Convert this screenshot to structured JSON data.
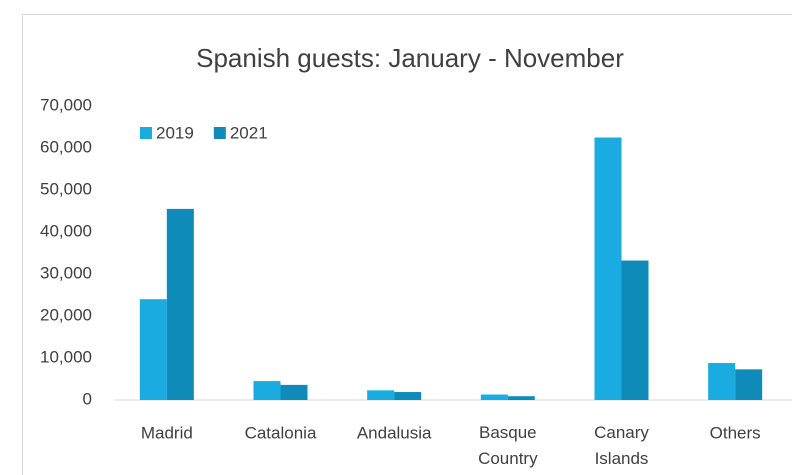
{
  "chart_data": {
    "type": "bar",
    "title": "Spanish guests: January - November",
    "categories": [
      "Madrid",
      "Catalonia",
      "Andalusia",
      "Basque Country",
      "Canary Islands",
      "Others"
    ],
    "series": [
      {
        "name": "2019",
        "color": "#1aabe0",
        "values": [
          24000,
          4500,
          2300,
          1300,
          62500,
          8800
        ]
      },
      {
        "name": "2021",
        "color": "#0e8bb8",
        "values": [
          45500,
          3600,
          1900,
          900,
          33200,
          7300
        ]
      }
    ],
    "ylim": [
      0,
      70000
    ],
    "yticks": [
      0,
      {
        "value": 10000,
        "label": "10,000"
      },
      {
        "value": 20000,
        "label": "20,000"
      },
      {
        "value": 30000,
        "label": "30,000"
      },
      {
        "value": 40000,
        "label": "40,000"
      },
      {
        "value": 50000,
        "label": "50,000"
      },
      {
        "value": 60000,
        "label": "60,000"
      },
      {
        "value": 70000,
        "label": "70,000"
      }
    ],
    "grid": false,
    "legend": "top-left"
  }
}
